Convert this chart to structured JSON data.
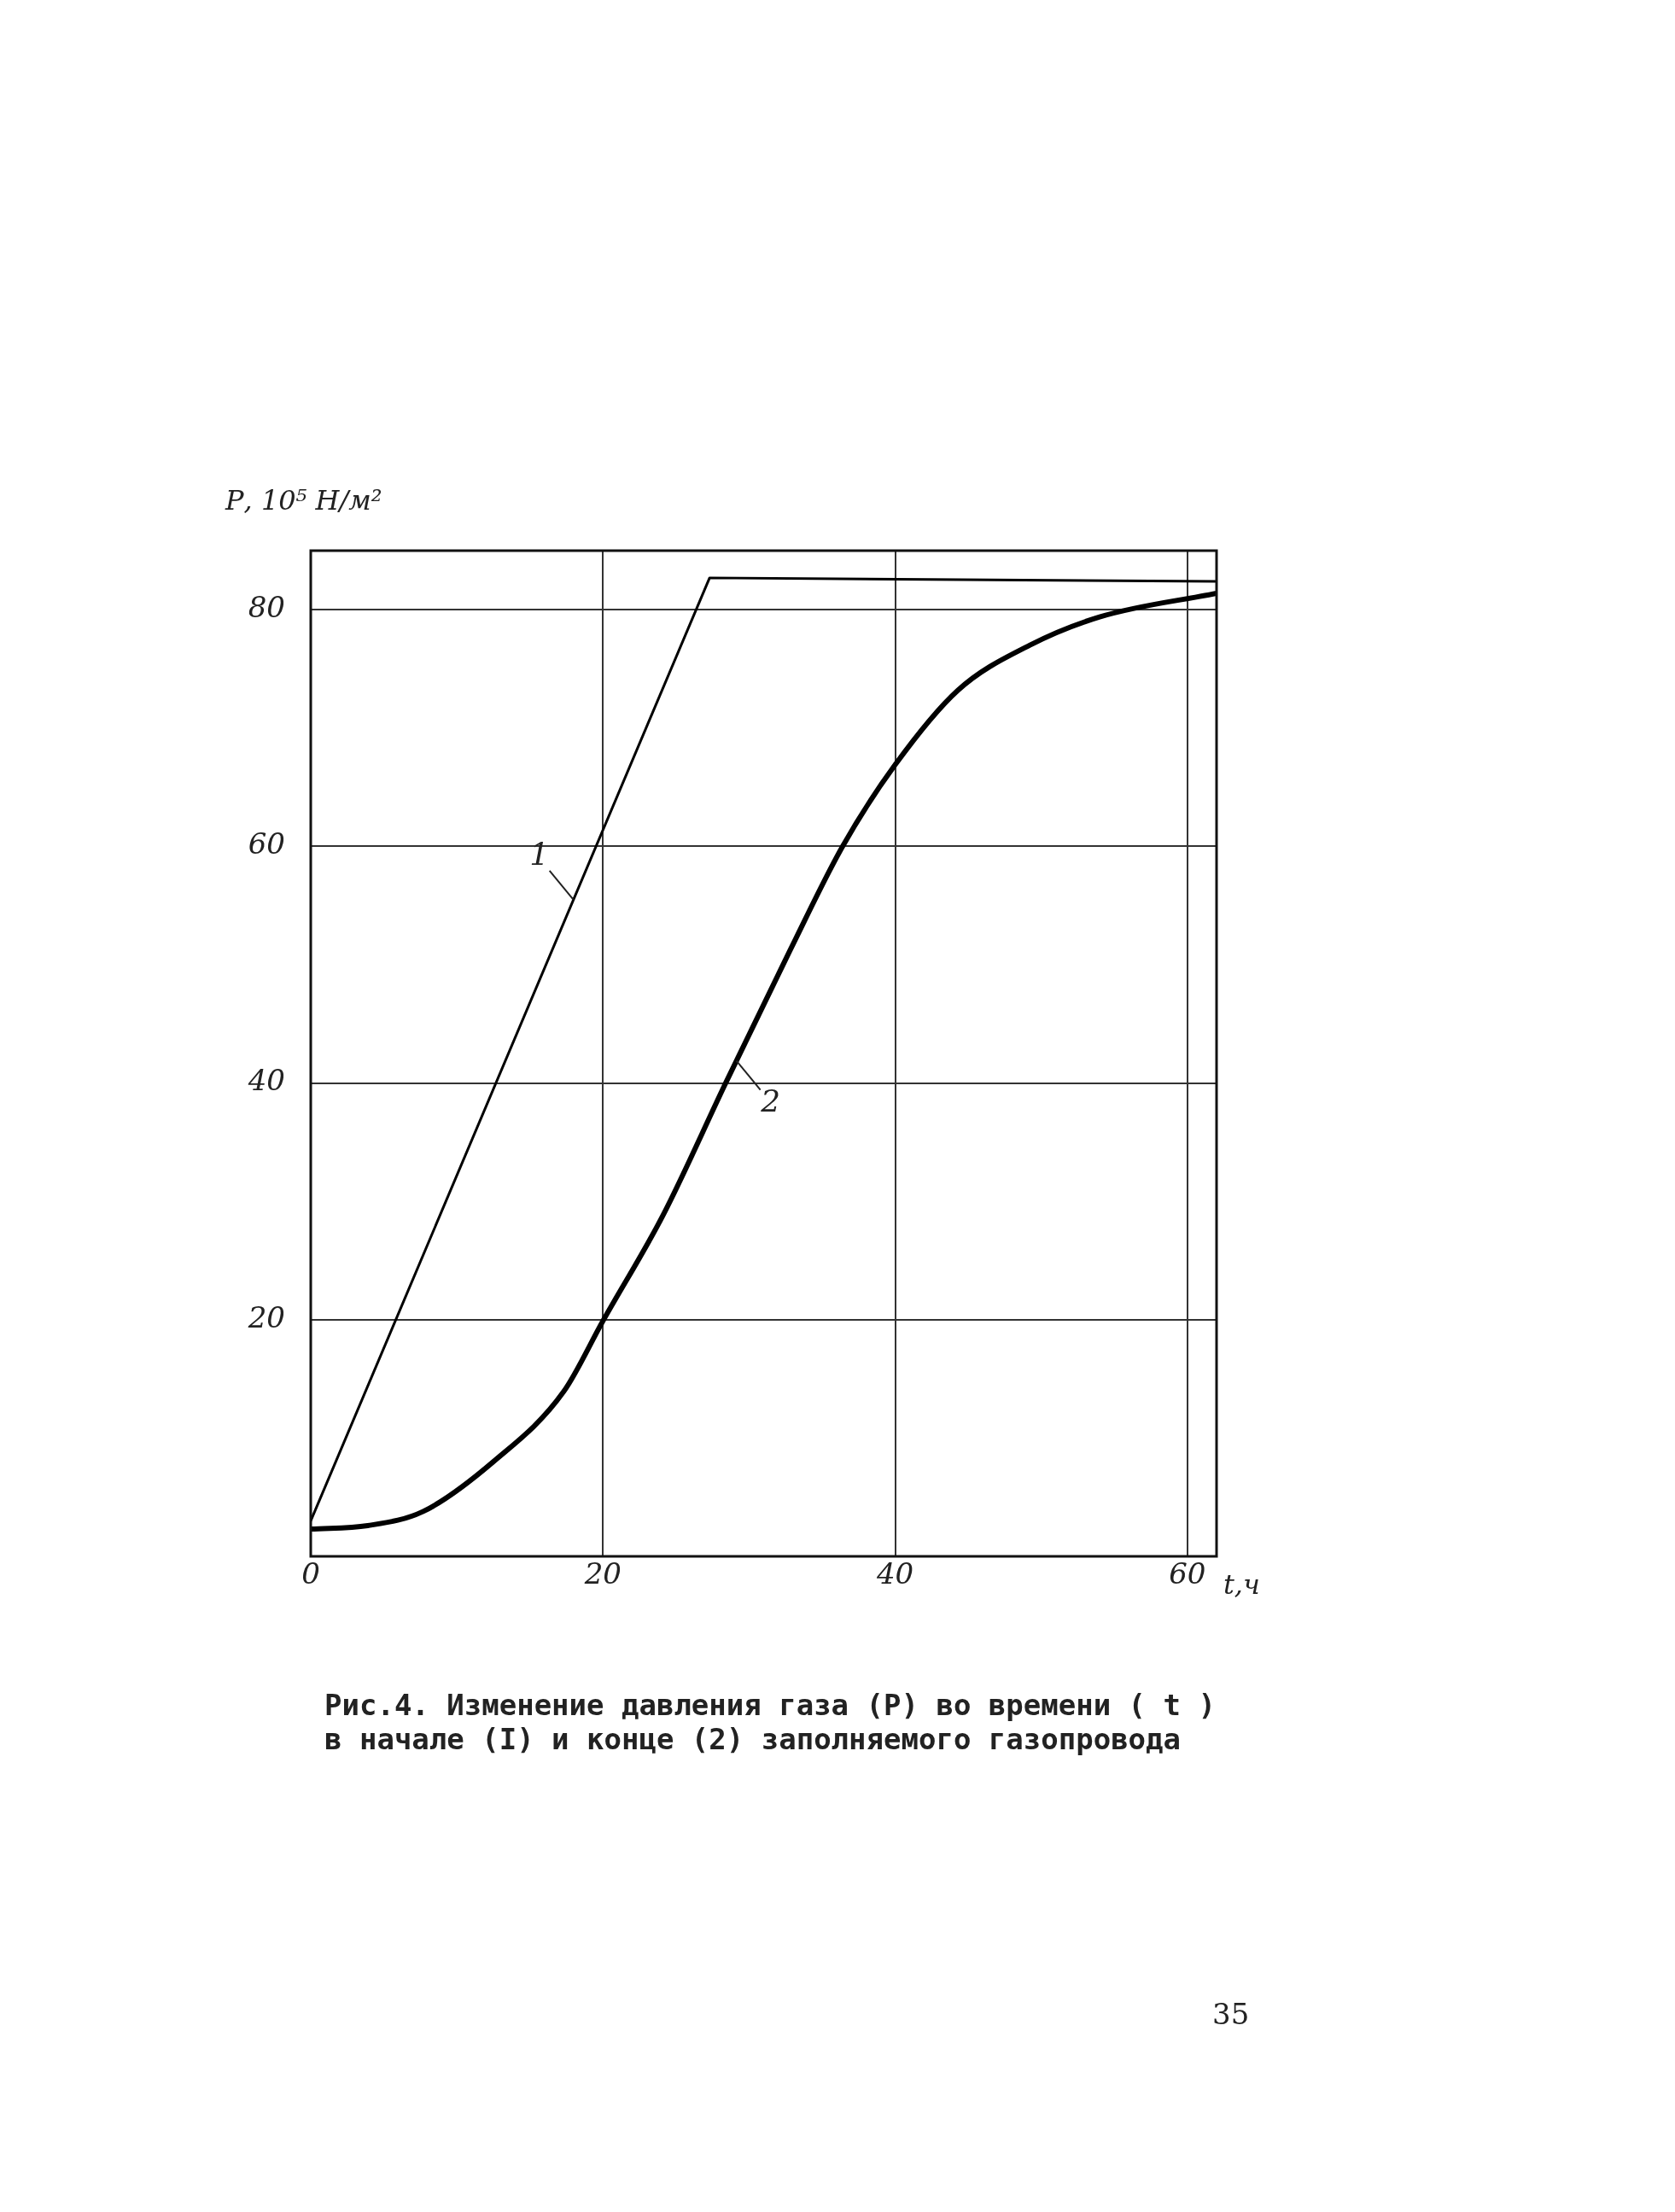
{
  "chart_data": {
    "type": "line",
    "xlabel": "t,ч",
    "ylabel": "Р, 10⁵ Н/м²",
    "xlim": [
      0,
      62
    ],
    "ylim": [
      0,
      85
    ],
    "xticks": [
      0,
      20,
      40,
      60
    ],
    "yticks": [
      20,
      40,
      60,
      80
    ],
    "grid": true,
    "legend": false,
    "marker": "none",
    "line_style": "solid",
    "series": [
      {
        "name": "1",
        "color": "#000000",
        "x": [
          0,
          27.3,
          62
        ],
        "values": [
          3,
          82.7,
          82.4
        ]
      },
      {
        "name": "2",
        "color": "#000000",
        "x": [
          0,
          3.9,
          7.7,
          12.5,
          17.3,
          20,
          24.1,
          28.4,
          32.8,
          36.4,
          40,
          44.3,
          49.2,
          54,
          62
        ],
        "values": [
          2.3,
          2.6,
          3.8,
          8,
          13.9,
          19.9,
          28.8,
          40,
          51.2,
          60,
          66.9,
          73.2,
          77,
          79.4,
          81.4
        ]
      }
    ],
    "annotations": [
      "Рис.4. Изменение давления газа (Р) во времени ( t ) в начале (I) и конце (2) заполняемого газопровода",
      "35"
    ]
  }
}
